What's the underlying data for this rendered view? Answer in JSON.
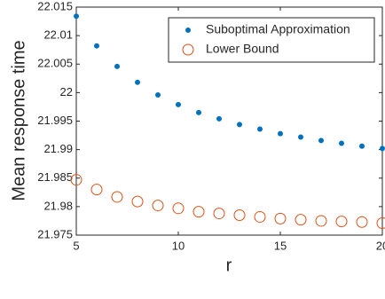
{
  "chart_data": {
    "type": "scatter",
    "xlabel": "r",
    "ylabel": "Mean response time",
    "x": [
      5,
      6,
      7,
      8,
      9,
      10,
      11,
      12,
      13,
      14,
      15,
      16,
      17,
      18,
      19,
      20
    ],
    "series": [
      {
        "name": "Suboptimal Approximation",
        "color": "#0072bd",
        "marker": "filled",
        "values": [
          22.0134,
          22.0082,
          22.0046,
          22.0018,
          21.9996,
          21.9979,
          21.9965,
          21.9954,
          21.9944,
          21.9936,
          21.9928,
          21.9922,
          21.9916,
          21.9911,
          21.9906,
          21.9902
        ]
      },
      {
        "name": "Lower Bound",
        "color": "#d95319",
        "marker": "open",
        "values": [
          21.9847,
          21.983,
          21.9817,
          21.9809,
          21.9802,
          21.9797,
          21.9791,
          21.9788,
          21.9785,
          21.9782,
          21.9779,
          21.9777,
          21.9775,
          21.9774,
          21.9773,
          21.9771
        ]
      }
    ],
    "xlim": [
      5,
      20
    ],
    "xticks": [
      5,
      10,
      15,
      20
    ],
    "ylim": [
      21.975,
      22.015
    ],
    "yticks": [
      21.975,
      21.98,
      21.985,
      21.99,
      21.995,
      22,
      22.005,
      22.01,
      22.015
    ],
    "legend": "top-right"
  }
}
